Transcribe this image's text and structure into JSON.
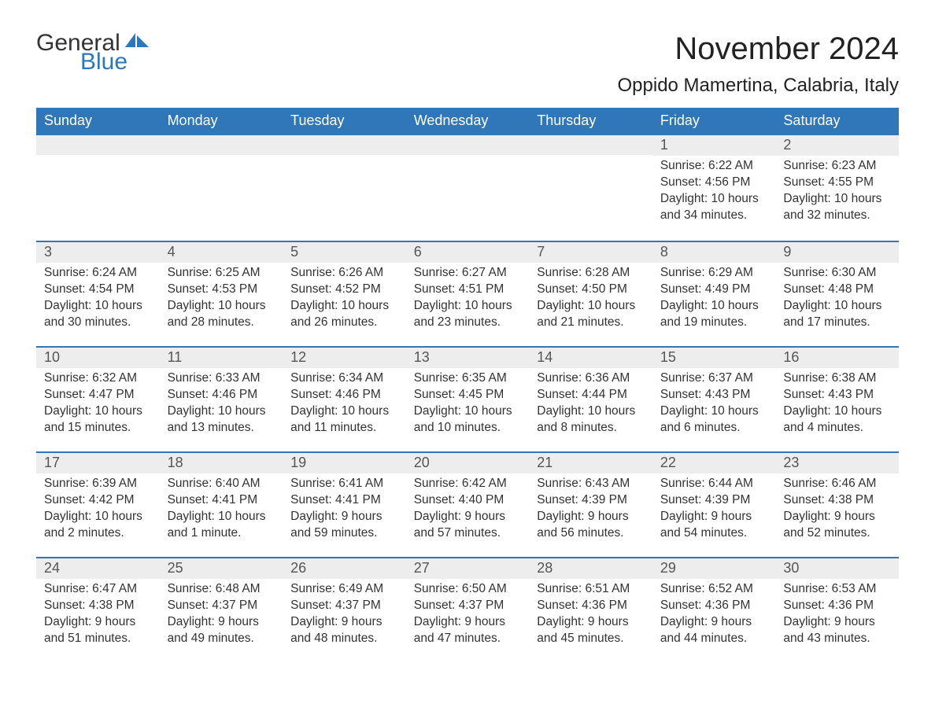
{
  "logo": {
    "word1": "General",
    "word2": "Blue",
    "icon_color": "#2f77b8"
  },
  "title": "November 2024",
  "location": "Oppido Mamertina, Calabria, Italy",
  "colors": {
    "header_bg": "#2f77b8",
    "header_text": "#ffffff",
    "daynum_bg": "#ededed",
    "body_text": "#333333",
    "border": "#2f77b8"
  },
  "typography": {
    "title_fontsize": 40,
    "location_fontsize": 24,
    "header_fontsize": 18,
    "daynum_fontsize": 18,
    "detail_fontsize": 15.5
  },
  "layout": {
    "columns": 7,
    "rows": 5,
    "cell_min_height": 122
  },
  "weekdays": [
    "Sunday",
    "Monday",
    "Tuesday",
    "Wednesday",
    "Thursday",
    "Friday",
    "Saturday"
  ],
  "weeks": [
    [
      {
        "blank": true
      },
      {
        "blank": true
      },
      {
        "blank": true
      },
      {
        "blank": true
      },
      {
        "blank": true
      },
      {
        "day": "1",
        "sunrise": "Sunrise: 6:22 AM",
        "sunset": "Sunset: 4:56 PM",
        "daylight": "Daylight: 10 hours and 34 minutes."
      },
      {
        "day": "2",
        "sunrise": "Sunrise: 6:23 AM",
        "sunset": "Sunset: 4:55 PM",
        "daylight": "Daylight: 10 hours and 32 minutes."
      }
    ],
    [
      {
        "day": "3",
        "sunrise": "Sunrise: 6:24 AM",
        "sunset": "Sunset: 4:54 PM",
        "daylight": "Daylight: 10 hours and 30 minutes."
      },
      {
        "day": "4",
        "sunrise": "Sunrise: 6:25 AM",
        "sunset": "Sunset: 4:53 PM",
        "daylight": "Daylight: 10 hours and 28 minutes."
      },
      {
        "day": "5",
        "sunrise": "Sunrise: 6:26 AM",
        "sunset": "Sunset: 4:52 PM",
        "daylight": "Daylight: 10 hours and 26 minutes."
      },
      {
        "day": "6",
        "sunrise": "Sunrise: 6:27 AM",
        "sunset": "Sunset: 4:51 PM",
        "daylight": "Daylight: 10 hours and 23 minutes."
      },
      {
        "day": "7",
        "sunrise": "Sunrise: 6:28 AM",
        "sunset": "Sunset: 4:50 PM",
        "daylight": "Daylight: 10 hours and 21 minutes."
      },
      {
        "day": "8",
        "sunrise": "Sunrise: 6:29 AM",
        "sunset": "Sunset: 4:49 PM",
        "daylight": "Daylight: 10 hours and 19 minutes."
      },
      {
        "day": "9",
        "sunrise": "Sunrise: 6:30 AM",
        "sunset": "Sunset: 4:48 PM",
        "daylight": "Daylight: 10 hours and 17 minutes."
      }
    ],
    [
      {
        "day": "10",
        "sunrise": "Sunrise: 6:32 AM",
        "sunset": "Sunset: 4:47 PM",
        "daylight": "Daylight: 10 hours and 15 minutes."
      },
      {
        "day": "11",
        "sunrise": "Sunrise: 6:33 AM",
        "sunset": "Sunset: 4:46 PM",
        "daylight": "Daylight: 10 hours and 13 minutes."
      },
      {
        "day": "12",
        "sunrise": "Sunrise: 6:34 AM",
        "sunset": "Sunset: 4:46 PM",
        "daylight": "Daylight: 10 hours and 11 minutes."
      },
      {
        "day": "13",
        "sunrise": "Sunrise: 6:35 AM",
        "sunset": "Sunset: 4:45 PM",
        "daylight": "Daylight: 10 hours and 10 minutes."
      },
      {
        "day": "14",
        "sunrise": "Sunrise: 6:36 AM",
        "sunset": "Sunset: 4:44 PM",
        "daylight": "Daylight: 10 hours and 8 minutes."
      },
      {
        "day": "15",
        "sunrise": "Sunrise: 6:37 AM",
        "sunset": "Sunset: 4:43 PM",
        "daylight": "Daylight: 10 hours and 6 minutes."
      },
      {
        "day": "16",
        "sunrise": "Sunrise: 6:38 AM",
        "sunset": "Sunset: 4:43 PM",
        "daylight": "Daylight: 10 hours and 4 minutes."
      }
    ],
    [
      {
        "day": "17",
        "sunrise": "Sunrise: 6:39 AM",
        "sunset": "Sunset: 4:42 PM",
        "daylight": "Daylight: 10 hours and 2 minutes."
      },
      {
        "day": "18",
        "sunrise": "Sunrise: 6:40 AM",
        "sunset": "Sunset: 4:41 PM",
        "daylight": "Daylight: 10 hours and 1 minute."
      },
      {
        "day": "19",
        "sunrise": "Sunrise: 6:41 AM",
        "sunset": "Sunset: 4:41 PM",
        "daylight": "Daylight: 9 hours and 59 minutes."
      },
      {
        "day": "20",
        "sunrise": "Sunrise: 6:42 AM",
        "sunset": "Sunset: 4:40 PM",
        "daylight": "Daylight: 9 hours and 57 minutes."
      },
      {
        "day": "21",
        "sunrise": "Sunrise: 6:43 AM",
        "sunset": "Sunset: 4:39 PM",
        "daylight": "Daylight: 9 hours and 56 minutes."
      },
      {
        "day": "22",
        "sunrise": "Sunrise: 6:44 AM",
        "sunset": "Sunset: 4:39 PM",
        "daylight": "Daylight: 9 hours and 54 minutes."
      },
      {
        "day": "23",
        "sunrise": "Sunrise: 6:46 AM",
        "sunset": "Sunset: 4:38 PM",
        "daylight": "Daylight: 9 hours and 52 minutes."
      }
    ],
    [
      {
        "day": "24",
        "sunrise": "Sunrise: 6:47 AM",
        "sunset": "Sunset: 4:38 PM",
        "daylight": "Daylight: 9 hours and 51 minutes."
      },
      {
        "day": "25",
        "sunrise": "Sunrise: 6:48 AM",
        "sunset": "Sunset: 4:37 PM",
        "daylight": "Daylight: 9 hours and 49 minutes."
      },
      {
        "day": "26",
        "sunrise": "Sunrise: 6:49 AM",
        "sunset": "Sunset: 4:37 PM",
        "daylight": "Daylight: 9 hours and 48 minutes."
      },
      {
        "day": "27",
        "sunrise": "Sunrise: 6:50 AM",
        "sunset": "Sunset: 4:37 PM",
        "daylight": "Daylight: 9 hours and 47 minutes."
      },
      {
        "day": "28",
        "sunrise": "Sunrise: 6:51 AM",
        "sunset": "Sunset: 4:36 PM",
        "daylight": "Daylight: 9 hours and 45 minutes."
      },
      {
        "day": "29",
        "sunrise": "Sunrise: 6:52 AM",
        "sunset": "Sunset: 4:36 PM",
        "daylight": "Daylight: 9 hours and 44 minutes."
      },
      {
        "day": "30",
        "sunrise": "Sunrise: 6:53 AM",
        "sunset": "Sunset: 4:36 PM",
        "daylight": "Daylight: 9 hours and 43 minutes."
      }
    ]
  ]
}
